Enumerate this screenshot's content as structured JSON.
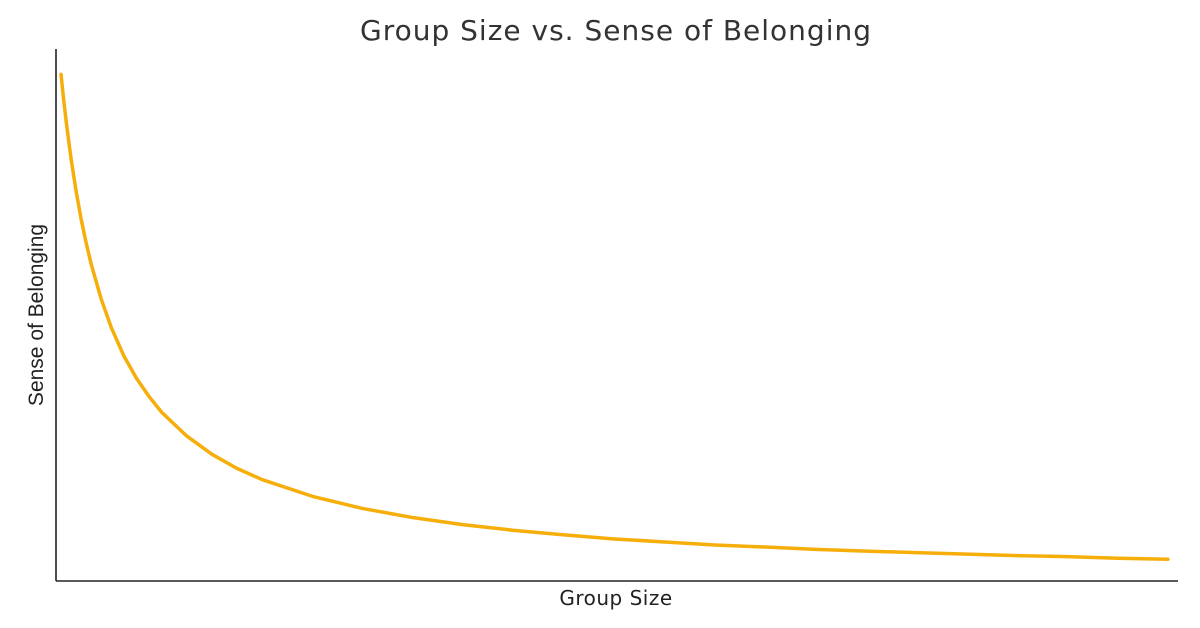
{
  "chart_data": {
    "type": "line",
    "title": "Group Size vs. Sense of Belonging",
    "xlabel": "Group Size",
    "ylabel": "Sense of Belonging",
    "xlim": [
      0.9,
      23.2
    ],
    "ylim": [
      0,
      1.05
    ],
    "grid": false,
    "legend": "none",
    "series": [
      {
        "color": "#F6AE0A",
        "x": [
          1.0,
          1.05,
          1.1,
          1.15,
          1.2,
          1.3,
          1.4,
          1.5,
          1.6,
          1.8,
          2.0,
          2.25,
          2.5,
          2.75,
          3.0,
          3.5,
          4.0,
          4.5,
          5.0,
          6.0,
          7.0,
          8.0,
          9.0,
          10.0,
          11.0,
          12.0,
          13.0,
          14.0,
          15.0,
          16.0,
          17.0,
          18.0,
          19.0,
          20.0,
          21.0,
          22.0,
          23.0
        ],
        "y": [
          1.0,
          0.952,
          0.909,
          0.87,
          0.833,
          0.769,
          0.714,
          0.667,
          0.625,
          0.556,
          0.5,
          0.444,
          0.4,
          0.364,
          0.333,
          0.286,
          0.25,
          0.222,
          0.2,
          0.167,
          0.143,
          0.125,
          0.111,
          0.1,
          0.091,
          0.083,
          0.077,
          0.071,
          0.067,
          0.0625,
          0.059,
          0.056,
          0.053,
          0.05,
          0.048,
          0.045,
          0.043
        ]
      }
    ]
  }
}
